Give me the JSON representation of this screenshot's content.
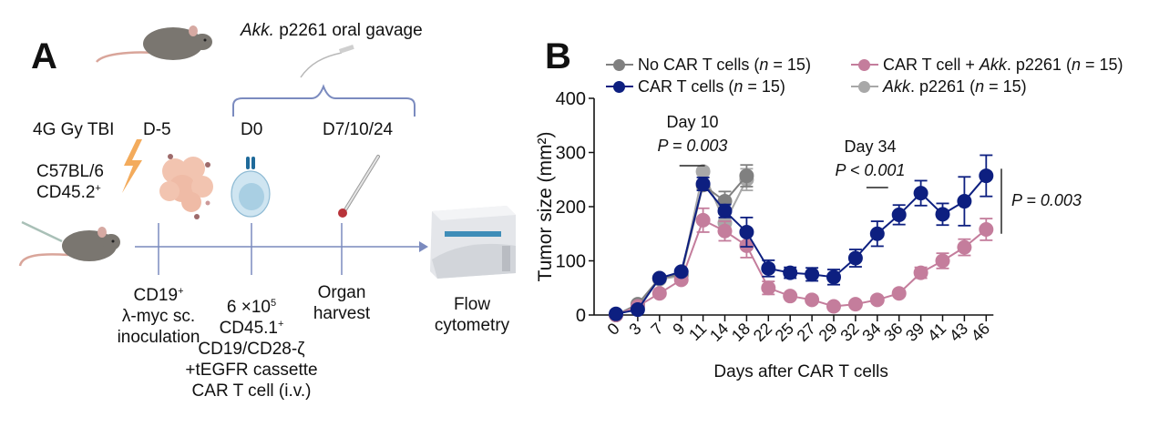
{
  "panel_a": {
    "letter": "A",
    "gavage_prefix": "Akk.",
    "gavage_rest": " p2261 oral gavage",
    "tbi": "4G Gy TBI",
    "strain_line1": "C57BL/6",
    "strain_line2": "CD45.2",
    "strain_sup": "+",
    "timepoints": [
      "D-5",
      "D0",
      "D7/10/24"
    ],
    "step1": {
      "line1": "CD19",
      "sup": "+",
      "line2": "λ-myc sc.",
      "line3": "inoculation"
    },
    "step2": {
      "line1a": "6 ×10",
      "line1sup": "5",
      "line2": "CD45.1",
      "line2sup": "+",
      "line3": "CD19/CD28-ζ",
      "line4": "+tEGFR cassette",
      "line5": "CAR T cell (i.v.)"
    },
    "step3": {
      "line1": "Organ",
      "line2": "harvest"
    },
    "step4": {
      "line1": "Flow",
      "line2": "cytometry"
    },
    "colors": {
      "timeline": "#7b8bbf",
      "mouse": "#7a7670",
      "bolt": "#f3ab5c",
      "tumor": "#f2c4b0",
      "cell": "#b9d9ea",
      "receptor": "#1f6a9a"
    }
  },
  "panel_b": {
    "letter": "B",
    "legend": [
      {
        "name": "No CAR T cells",
        "n": "15",
        "color": "#808080",
        "italic_prefix": ""
      },
      {
        "name": "CAR T cells",
        "n": "15",
        "color": "#0d1f80",
        "italic_prefix": ""
      },
      {
        "name": "CAR T cell + ",
        "n": "15",
        "color": "#c47d9c",
        "italic_prefix": "",
        "italic_mid": "Akk",
        "after_mid": ". p2261"
      },
      {
        "name": ". p2261",
        "n": "15",
        "color": "#a8a8a8",
        "italic_prefix": "Akk"
      }
    ],
    "annotations": {
      "day10_title": "Day 10",
      "day10_p": "P = 0.003",
      "day34_title": "Day 34",
      "day34_p": "P < 0.001",
      "overall_p": "P = 0.003"
    }
  },
  "chart_data": {
    "type": "line",
    "title": "",
    "xlabel": "Days after CAR T cells",
    "ylabel": "Tumor size (mm²)",
    "ylim": [
      0,
      400
    ],
    "yticks": [
      0,
      100,
      200,
      300,
      400
    ],
    "x": [
      0,
      3,
      7,
      9,
      11,
      14,
      18,
      22,
      25,
      27,
      29,
      32,
      34,
      36,
      39,
      41,
      43,
      46
    ],
    "xtick_labels": [
      "0",
      "3",
      "7",
      "9",
      "11",
      "14",
      "18",
      "22",
      "25",
      "27",
      "29",
      "32",
      "34",
      "36",
      "39",
      "41",
      "43",
      "46"
    ],
    "grid": false,
    "legend_position": "top",
    "series": [
      {
        "name": "Akk. p2261 (n = 15)",
        "color": "#a8a8a8",
        "values": [
          0,
          18,
          66,
          72,
          265,
          170,
          250
        ],
        "errors": [
          0,
          3,
          5,
          6,
          6,
          8,
          20
        ]
      },
      {
        "name": "No CAR T cells (n = 15)",
        "color": "#808080",
        "values": [
          0,
          20,
          68,
          75,
          240,
          210,
          257
        ],
        "errors": [
          0,
          3,
          5,
          5,
          8,
          18,
          20
        ]
      },
      {
        "name": "CAR T cell + Akk. p2261 (n = 15)",
        "color": "#c47d9c",
        "values": [
          0,
          16,
          40,
          65,
          175,
          155,
          128,
          50,
          35,
          28,
          16,
          20,
          28,
          40,
          78,
          100,
          125,
          158
        ],
        "errors": [
          0,
          2,
          4,
          5,
          22,
          18,
          22,
          12,
          4,
          4,
          3,
          3,
          3,
          4,
          10,
          14,
          15,
          20
        ]
      },
      {
        "name": "CAR T cells (n = 15)",
        "color": "#0d1f80",
        "values": [
          2,
          10,
          68,
          80,
          242,
          192,
          153,
          86,
          78,
          75,
          70,
          105,
          150,
          185,
          225,
          186,
          210,
          257
        ],
        "errors": [
          0,
          2,
          4,
          5,
          12,
          12,
          27,
          15,
          10,
          12,
          14,
          16,
          23,
          18,
          23,
          20,
          45,
          38
        ]
      }
    ],
    "significance": [
      {
        "label": "Day 10",
        "p": "P = 0.003",
        "x_from": 9,
        "x_to": 11
      },
      {
        "label": "Day 34",
        "p": "P < 0.001",
        "x_from": 32,
        "x_to": 36
      },
      {
        "label": "overall",
        "p": "P = 0.003",
        "y_from": 150,
        "y_to": 270
      }
    ]
  }
}
